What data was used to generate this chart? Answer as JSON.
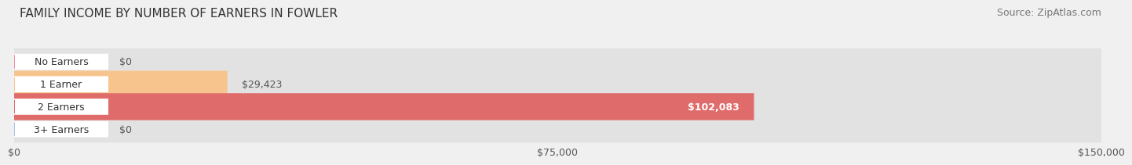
{
  "title": "FAMILY INCOME BY NUMBER OF EARNERS IN FOWLER",
  "source": "Source: ZipAtlas.com",
  "categories": [
    "No Earners",
    "1 Earner",
    "2 Earners",
    "3+ Earners"
  ],
  "values": [
    0,
    29423,
    102083,
    0
  ],
  "bar_colors": [
    "#f48ca0",
    "#f7c48e",
    "#e06b6b",
    "#a8c4e0"
  ],
  "label_colors": [
    "#555555",
    "#555555",
    "#ffffff",
    "#555555"
  ],
  "xlim": [
    0,
    150000
  ],
  "xticks": [
    0,
    75000,
    150000
  ],
  "xtick_labels": [
    "$0",
    "$75,000",
    "$150,000"
  ],
  "background_color": "#f0f0f0",
  "bar_background_color": "#e2e2e2",
  "title_fontsize": 11,
  "source_fontsize": 9,
  "label_fontsize": 9,
  "tick_fontsize": 9,
  "category_fontsize": 9
}
